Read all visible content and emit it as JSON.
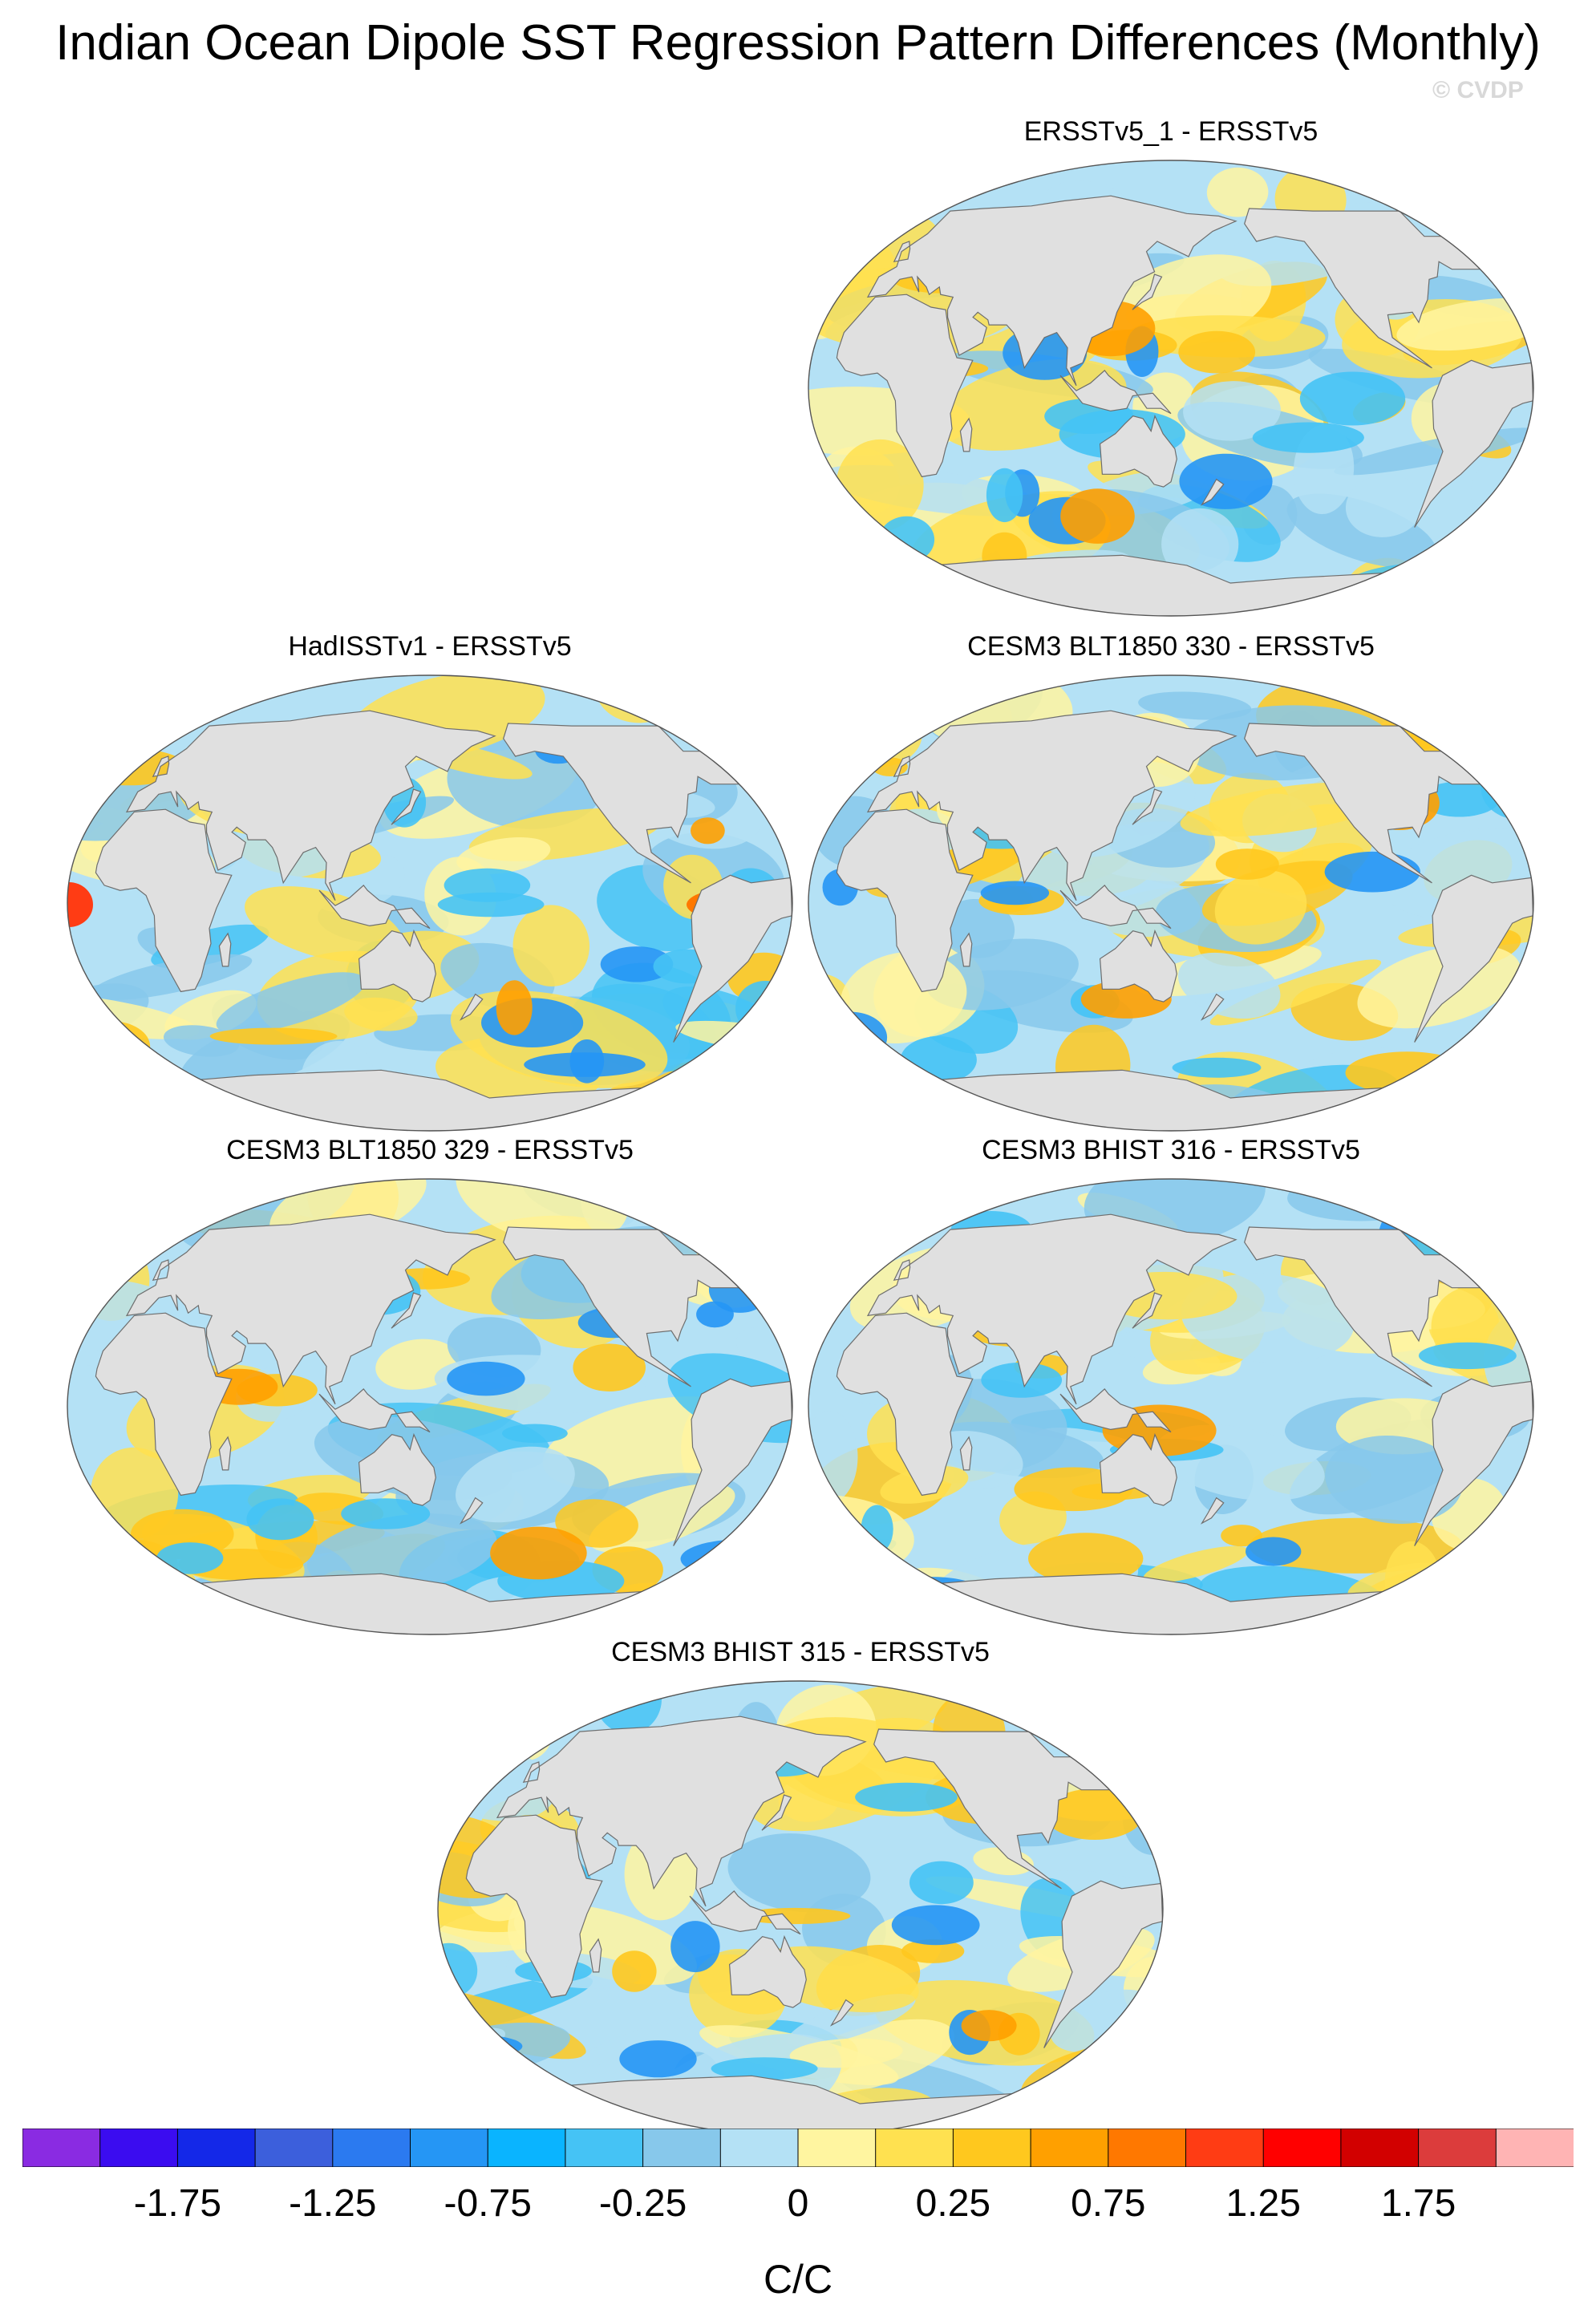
{
  "title": "Indian Ocean Dipole SST Regression Pattern Differences (Monthly)",
  "watermark": "© CVDP",
  "panels": [
    {
      "title": "ERSSTv5_1 - ERSSTv5",
      "variant": 1
    },
    {
      "title": "HadISSTv1 - ERSSTv5",
      "variant": 2
    },
    {
      "title": "CESM3 BLT1850 330 - ERSSTv5",
      "variant": 3
    },
    {
      "title": "CESM3 BLT1850 329 - ERSSTv5",
      "variant": 4
    },
    {
      "title": "CESM3 BHIST 316 - ERSSTv5",
      "variant": 5
    },
    {
      "title": "CESM3 BHIST 315 - ERSSTv5",
      "variant": 6
    }
  ],
  "colorbar": {
    "units": "C/C",
    "colors": [
      "#8a2be2",
      "#3b0cf0",
      "#1428e8",
      "#3c5fdc",
      "#2b7af0",
      "#2596f5",
      "#0ab4ff",
      "#45c3f5",
      "#87c8eb",
      "#b4e1f5",
      "#fff5a0",
      "#ffe150",
      "#ffc81e",
      "#ffa000",
      "#ff7800",
      "#ff3c14",
      "#ff0000",
      "#d20000",
      "#dc3c3c",
      "#ffb4b4"
    ],
    "tick_labels": [
      "-1.75",
      "-1.25",
      "-0.75",
      "-0.25",
      "0",
      "0.25",
      "0.75",
      "1.25",
      "1.75"
    ]
  }
}
